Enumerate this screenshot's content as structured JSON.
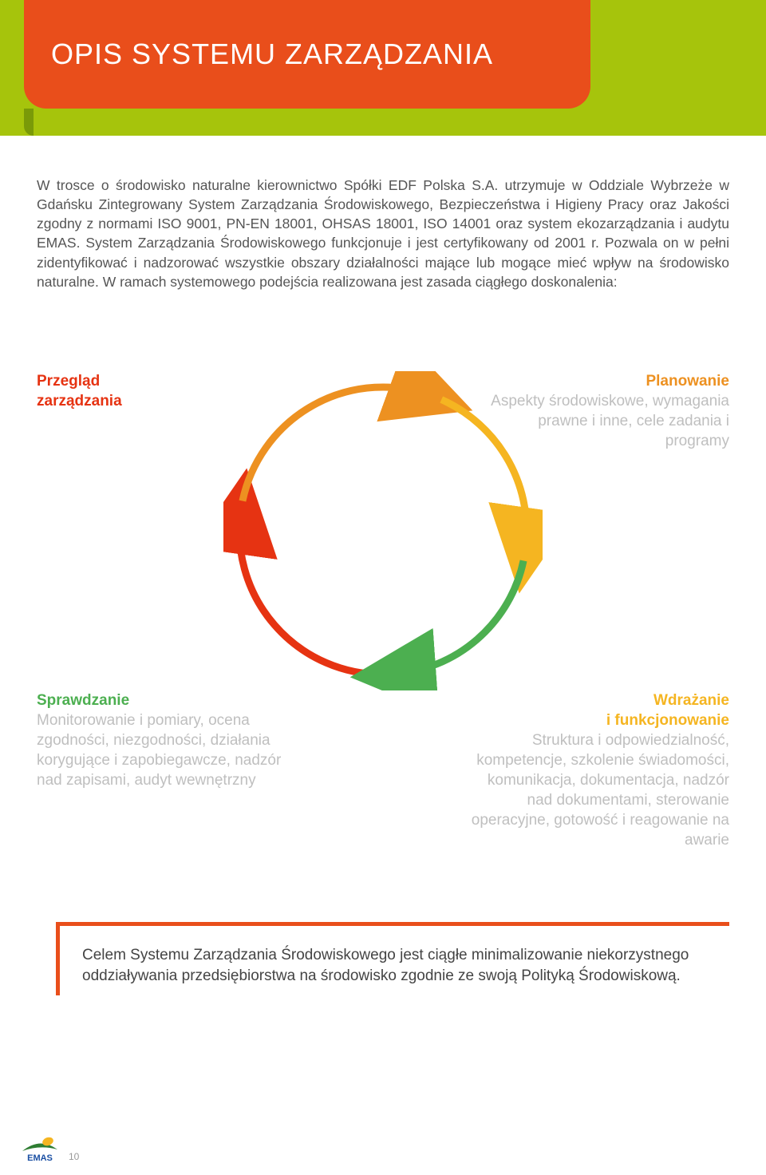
{
  "header": {
    "title": "OPIS SYSTEMU ZARZĄDZANIA",
    "band_color": "#a6c40c",
    "tab_color": "#e94e1b"
  },
  "paragraph": "W trosce o środowisko naturalne kierownictwo Spółki EDF Polska S.A. utrzymuje w Oddziale Wybrzeże w Gdańsku Zintegrowany System Zarządzania Środowiskowego, Bezpieczeństwa i Higieny Pracy oraz Jakości zgodny z normami ISO 9001, PN-EN 18001, OHSAS 18001, ISO 14001 oraz system ekozarządzania i audytu EMAS. System Zarządzania Środowiskowego funkcjonuje i jest certyfikowany od 2001 r. Pozwala on w pełni zidentyfikować i nadzorować wszystkie obszary działalności mające lub mogące mieć wpływ na środowisko naturalne. W ramach systemowego podejścia realizowana jest zasada ciągłego doskonalenia:",
  "cycle": {
    "type": "cycle-diagram",
    "arcs": [
      {
        "key": "tl",
        "color": "#e63312",
        "start_deg": 180,
        "end_deg": 278
      },
      {
        "key": "tr",
        "color": "#ed9121",
        "start_deg": 282,
        "end_deg": 20
      },
      {
        "key": "br",
        "color": "#f5b521",
        "start_deg": 24,
        "end_deg": 98
      },
      {
        "key": "bl",
        "color": "#4caf50",
        "start_deg": 102,
        "end_deg": 176
      }
    ],
    "stroke_width": 9,
    "radius": 180,
    "labels": {
      "tl": {
        "title": "Przegląd",
        "title2": "zarządzania",
        "title_color": "#e63312",
        "body": ""
      },
      "tr": {
        "title": "Planowanie",
        "title_color": "#ed9121",
        "body": "Aspekty środowiskowe, wymagania prawne i inne, cele zadania i programy",
        "body_color": "#bfbfbf"
      },
      "bl": {
        "title": "Sprawdzanie",
        "title_color": "#4caf50",
        "body": "Monitorowanie i pomiary, ocena zgodności, niezgodności, działania korygujące i zapobiegawcze, nadzór nad zapisami, audyt wewnętrzny",
        "body_color": "#bfbfbf"
      },
      "br": {
        "title": "Wdrażanie",
        "title2": "i funkcjonowanie",
        "title_color": "#f5b521",
        "body": "Struktura i odpowiedzialność, kompetencje, szkolenie świadomości, komunikacja, dokumentacja, nadzór nad dokumentami, sterowanie operacyjne, gotowość i reagowanie na awarie",
        "body_color": "#bfbfbf"
      }
    }
  },
  "footer": {
    "text": "Celem Systemu Zarządzania Środowiskowego jest ciągłe minimalizowanie niekorzystnego oddziaływania przedsiębiorstwa na środowisko zgodnie ze swoją Polityką Środowiskową.",
    "border_color": "#e94e1b"
  },
  "page_number": "10",
  "emas": {
    "label": "EMAS",
    "swoosh_color": "#2e7d32",
    "leaf_color": "#f5b521",
    "text_color": "#1a4fa3"
  }
}
